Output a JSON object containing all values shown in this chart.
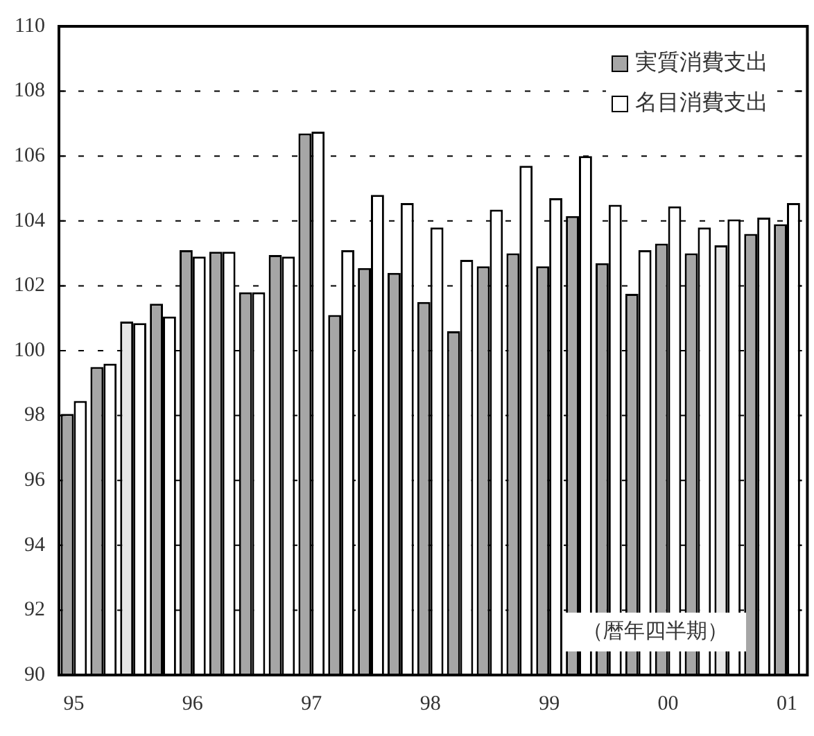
{
  "chart_data": {
    "type": "bar",
    "categories": [
      "95",
      null,
      null,
      null,
      "96",
      null,
      null,
      null,
      "97",
      null,
      null,
      null,
      "98",
      null,
      null,
      null,
      "99",
      null,
      null,
      null,
      "00",
      null,
      null,
      null,
      "01"
    ],
    "series": [
      {
        "name": "実質消費支出",
        "color": "#a6a6a6",
        "colors": [
          "#a6a6a6",
          "#a6a6a6",
          "#e6e6e6",
          "#a6a6a6",
          "#a6a6a6",
          "#a6a6a6",
          "#a6a6a6",
          "#a6a6a6",
          "#a6a6a6",
          "#a6a6a6",
          "#a6a6a6",
          "#a6a6a6",
          "#a6a6a6",
          "#a6a6a6",
          "#a6a6a6",
          "#a6a6a6",
          "#a6a6a6",
          "#a6a6a6",
          "#a6a6a6",
          "#a6a6a6",
          "#a6a6a6",
          "#a6a6a6",
          "#e6e6e6",
          "#a6a6a6",
          "#a6a6a6"
        ],
        "values": [
          98.05,
          99.5,
          100.9,
          101.45,
          103.1,
          103.05,
          101.8,
          102.95,
          106.7,
          101.1,
          102.55,
          102.4,
          101.5,
          100.6,
          102.6,
          103.0,
          102.6,
          104.15,
          102.7,
          101.75,
          103.3,
          103.0,
          103.25,
          103.6,
          103.9
        ]
      },
      {
        "name": "名目消費支出",
        "color": "#ffffff",
        "values": [
          98.45,
          99.6,
          100.85,
          101.05,
          102.9,
          103.05,
          101.8,
          102.9,
          106.75,
          103.1,
          104.8,
          104.55,
          103.8,
          102.8,
          104.35,
          105.7,
          104.7,
          106.0,
          104.5,
          103.1,
          104.45,
          103.8,
          104.05,
          104.1,
          104.55
        ]
      }
    ],
    "ylim": [
      90,
      110
    ],
    "yticks": [
      90,
      92,
      94,
      96,
      98,
      100,
      102,
      104,
      106,
      108,
      110
    ],
    "grid": "y",
    "legend": "top right",
    "annotations": [
      "（暦年四半期）"
    ]
  }
}
